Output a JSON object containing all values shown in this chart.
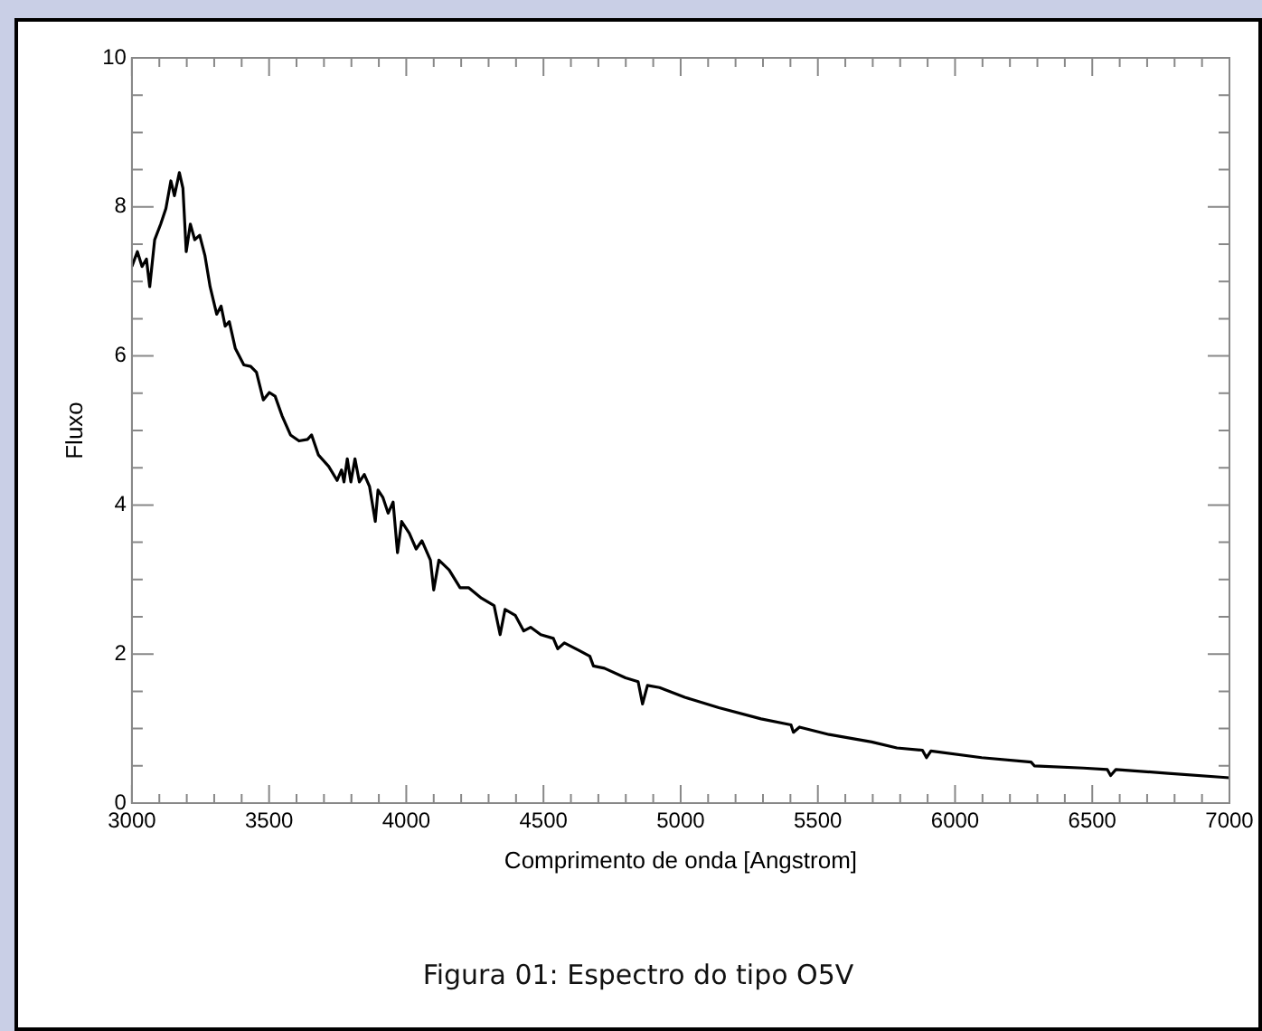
{
  "chart_data": {
    "type": "line",
    "xlabel": "Comprimento de onda [Angstrom]",
    "ylabel": "Fluxo",
    "annotations": [
      "Figura 01: Espectro do tipo O5V"
    ],
    "x": [
      3000,
      3020,
      3037,
      3053,
      3065,
      3083,
      3105,
      3124,
      3142,
      3155,
      3173,
      3186,
      3198,
      3213,
      3229,
      3247,
      3266,
      3285,
      3309,
      3325,
      3340,
      3355,
      3377,
      3408,
      3433,
      3454,
      3479,
      3501,
      3522,
      3547,
      3578,
      3609,
      3640,
      3655,
      3680,
      3717,
      3748,
      3764,
      3773,
      3785,
      3798,
      3813,
      3829,
      3847,
      3866,
      3887,
      3897,
      3915,
      3934,
      3952,
      3968,
      3983,
      4011,
      4036,
      4057,
      4088,
      4100,
      4119,
      4156,
      4196,
      4227,
      4274,
      4320,
      4342,
      4360,
      4397,
      4428,
      4453,
      4490,
      4536,
      4552,
      4576,
      4629,
      4669,
      4682,
      4722,
      4799,
      4845,
      4861,
      4879,
      4923,
      5015,
      5139,
      5293,
      5402,
      5411,
      5433,
      5541,
      5696,
      5788,
      5881,
      5896,
      5912,
      6097,
      6277,
      6289,
      6468,
      6555,
      6567,
      6586,
      6777,
      7000
    ],
    "series": [
      {
        "color": "#000000",
        "values": [
          7.2,
          7.4,
          7.2,
          7.3,
          6.93,
          7.56,
          7.77,
          7.98,
          8.35,
          8.15,
          8.46,
          8.25,
          7.4,
          7.77,
          7.56,
          7.62,
          7.35,
          6.93,
          6.56,
          6.67,
          6.4,
          6.46,
          6.1,
          5.88,
          5.86,
          5.78,
          5.41,
          5.51,
          5.46,
          5.2,
          4.94,
          4.86,
          4.88,
          4.94,
          4.67,
          4.52,
          4.33,
          4.47,
          4.31,
          4.62,
          4.31,
          4.62,
          4.31,
          4.41,
          4.25,
          3.78,
          4.2,
          4.1,
          3.89,
          4.04,
          3.36,
          3.78,
          3.62,
          3.41,
          3.52,
          3.26,
          2.86,
          3.26,
          3.13,
          2.89,
          2.89,
          2.75,
          2.65,
          2.26,
          2.6,
          2.52,
          2.31,
          2.36,
          2.26,
          2.21,
          2.07,
          2.15,
          2.05,
          1.97,
          1.84,
          1.81,
          1.68,
          1.63,
          1.33,
          1.58,
          1.55,
          1.42,
          1.28,
          1.13,
          1.05,
          0.95,
          1.02,
          0.92,
          0.82,
          0.74,
          0.71,
          0.61,
          0.7,
          0.61,
          0.55,
          0.5,
          0.47,
          0.45,
          0.37,
          0.45,
          0.4,
          0.34
        ]
      }
    ],
    "xlim": [
      3000,
      7000
    ],
    "xticks": [
      3000,
      {
        "value": 3100,
        "label": null
      },
      {
        "value": 3200,
        "label": null
      },
      {
        "value": 3300,
        "label": null
      },
      {
        "value": 3400,
        "label": null
      },
      3500,
      {
        "value": 3600,
        "label": null
      },
      {
        "value": 3700,
        "label": null
      },
      {
        "value": 3800,
        "label": null
      },
      {
        "value": 3900,
        "label": null
      },
      4000,
      {
        "value": 4100,
        "label": null
      },
      {
        "value": 4200,
        "label": null
      },
      {
        "value": 4300,
        "label": null
      },
      {
        "value": 4400,
        "label": null
      },
      4500,
      {
        "value": 4600,
        "label": null
      },
      {
        "value": 4700,
        "label": null
      },
      {
        "value": 4800,
        "label": null
      },
      {
        "value": 4900,
        "label": null
      },
      5000,
      {
        "value": 5100,
        "label": null
      },
      {
        "value": 5200,
        "label": null
      },
      {
        "value": 5300,
        "label": null
      },
      {
        "value": 5400,
        "label": null
      },
      5500,
      {
        "value": 5600,
        "label": null
      },
      {
        "value": 5700,
        "label": null
      },
      {
        "value": 5800,
        "label": null
      },
      {
        "value": 5900,
        "label": null
      },
      6000,
      {
        "value": 6100,
        "label": null
      },
      {
        "value": 6200,
        "label": null
      },
      {
        "value": 6300,
        "label": null
      },
      {
        "value": 6400,
        "label": null
      },
      6500,
      {
        "value": 6600,
        "label": null
      },
      {
        "value": 6700,
        "label": null
      },
      {
        "value": 6800,
        "label": null
      },
      {
        "value": 6900,
        "label": null
      },
      7000
    ],
    "ylim": [
      0,
      10
    ],
    "yticks": [
      0,
      {
        "value": 0.5,
        "label": null
      },
      {
        "value": 1,
        "label": null
      },
      {
        "value": 1.5,
        "label": null
      },
      2,
      {
        "value": 2.5,
        "label": null
      },
      {
        "value": 3,
        "label": null
      },
      {
        "value": 3.5,
        "label": null
      },
      4,
      {
        "value": 4.5,
        "label": null
      },
      {
        "value": 5,
        "label": null
      },
      {
        "value": 5.5,
        "label": null
      },
      6,
      {
        "value": 6.5,
        "label": null
      },
      {
        "value": 7,
        "label": null
      },
      {
        "value": 7.5,
        "label": null
      },
      8,
      {
        "value": 8.5,
        "label": null
      },
      {
        "value": 9,
        "label": null
      },
      {
        "value": 9.5,
        "label": null
      },
      10
    ],
    "grid": false,
    "legend": false,
    "marker": "none",
    "line_style": "solid"
  }
}
